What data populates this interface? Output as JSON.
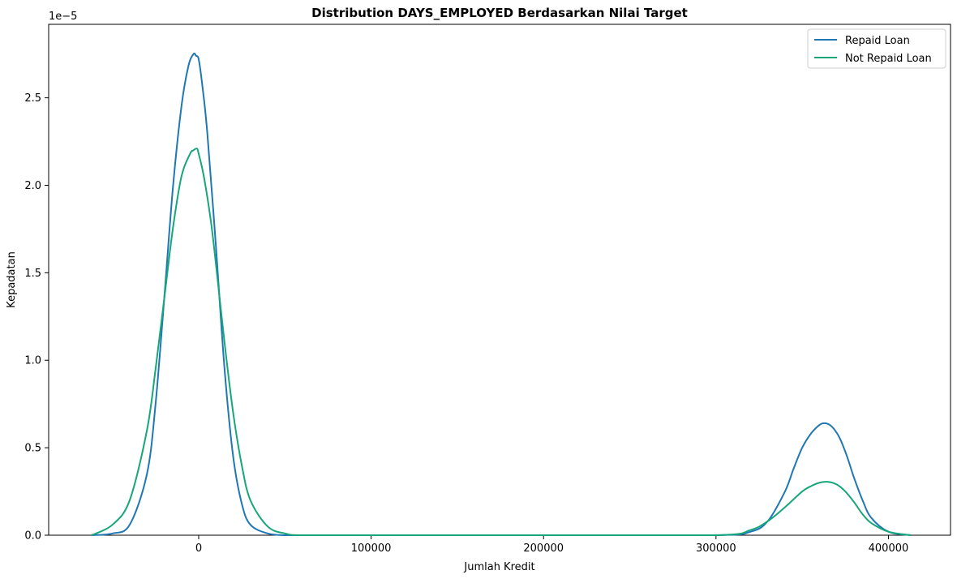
{
  "chart_data": {
    "type": "line",
    "title": "Distribution DAYS_EMPLOYED Berdasarkan Nilai Target",
    "xlabel": "Jumlah Kredit",
    "ylabel": "Kepadatan",
    "y_scale_label": "1e−5",
    "xlim": [
      -87000,
      436000
    ],
    "ylim": [
      0,
      2.92
    ],
    "x_ticks": [
      0,
      100000,
      200000,
      300000,
      400000
    ],
    "x_tick_labels": [
      "0",
      "100000",
      "200000",
      "300000",
      "400000"
    ],
    "y_ticks": [
      0.0,
      0.5,
      1.0,
      1.5,
      2.0,
      2.5
    ],
    "y_tick_labels": [
      "0.0",
      "0.5",
      "1.0",
      "1.5",
      "2.0",
      "2.5"
    ],
    "grid": false,
    "legend_position": "top-right",
    "series": [
      {
        "name": "Repaid Loan",
        "color": "#1f77b4",
        "x": [
          -62000,
          -50000,
          -40000,
          -30000,
          -25000,
          -20000,
          -15000,
          -10000,
          -6000,
          -3000,
          -1500,
          0,
          2000,
          5000,
          10000,
          15000,
          20000,
          25000,
          30000,
          40000,
          50000,
          60000,
          100000,
          200000,
          300000,
          320000,
          330000,
          340000,
          345000,
          350000,
          355000,
          360000,
          363000,
          366000,
          369000,
          372000,
          376000,
          380000,
          385000,
          390000,
          400000,
          413000
        ],
        "y": [
          0.0,
          0.01,
          0.06,
          0.35,
          0.75,
          1.35,
          1.98,
          2.45,
          2.68,
          2.75,
          2.74,
          2.72,
          2.58,
          2.3,
          1.65,
          0.95,
          0.45,
          0.18,
          0.06,
          0.01,
          0.0,
          0.0,
          0.0,
          0.0,
          0.0,
          0.02,
          0.08,
          0.25,
          0.38,
          0.5,
          0.58,
          0.63,
          0.64,
          0.63,
          0.6,
          0.55,
          0.45,
          0.33,
          0.2,
          0.1,
          0.02,
          0.0
        ]
      },
      {
        "name": "Not Repaid Loan",
        "color": "#17a57a",
        "x": [
          -62000,
          -50000,
          -40000,
          -30000,
          -25000,
          -20000,
          -15000,
          -10000,
          -5000,
          -3000,
          -1000,
          0,
          3000,
          7000,
          10000,
          15000,
          20000,
          25000,
          30000,
          40000,
          50000,
          60000,
          100000,
          200000,
          300000,
          320000,
          330000,
          340000,
          350000,
          355000,
          360000,
          365000,
          370000,
          375000,
          380000,
          385000,
          390000,
          400000,
          413000
        ],
        "y": [
          0.0,
          0.06,
          0.2,
          0.6,
          0.95,
          1.35,
          1.75,
          2.05,
          2.18,
          2.2,
          2.21,
          2.18,
          2.05,
          1.8,
          1.55,
          1.1,
          0.7,
          0.4,
          0.2,
          0.05,
          0.01,
          0.0,
          0.0,
          0.0,
          0.0,
          0.03,
          0.08,
          0.16,
          0.25,
          0.28,
          0.3,
          0.305,
          0.29,
          0.25,
          0.19,
          0.12,
          0.07,
          0.02,
          0.0
        ]
      }
    ]
  }
}
